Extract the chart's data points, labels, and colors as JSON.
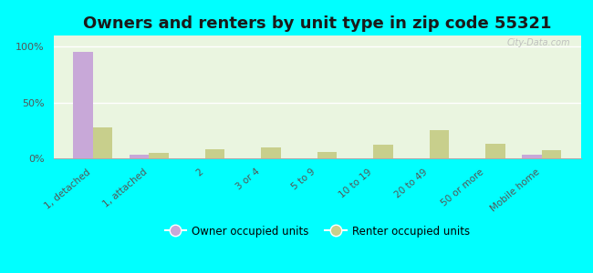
{
  "title": "Owners and renters by unit type in zip code 55321",
  "categories": [
    "1, detached",
    "1, attached",
    "2",
    "3 or 4",
    "5 to 9",
    "10 to 19",
    "20 to 49",
    "50 or more",
    "Mobile home"
  ],
  "owner_values": [
    95,
    3,
    0,
    0,
    0,
    0,
    0,
    0,
    3
  ],
  "renter_values": [
    28,
    5,
    8,
    10,
    6,
    12,
    25,
    13,
    7
  ],
  "owner_color": "#c8a8d8",
  "renter_color": "#c8cf8c",
  "plot_bg_color": "#eaf5e0",
  "outer_bg": "#00ffff",
  "ylabel_ticks": [
    "0%",
    "50%",
    "100%"
  ],
  "ytick_vals": [
    0,
    50,
    100
  ],
  "ylim": [
    0,
    110
  ],
  "bar_width": 0.35,
  "legend_owner": "Owner occupied units",
  "legend_renter": "Renter occupied units",
  "watermark": "City-Data.com",
  "title_fontsize": 13,
  "tick_fontsize": 7.5,
  "ytick_fontsize": 8
}
